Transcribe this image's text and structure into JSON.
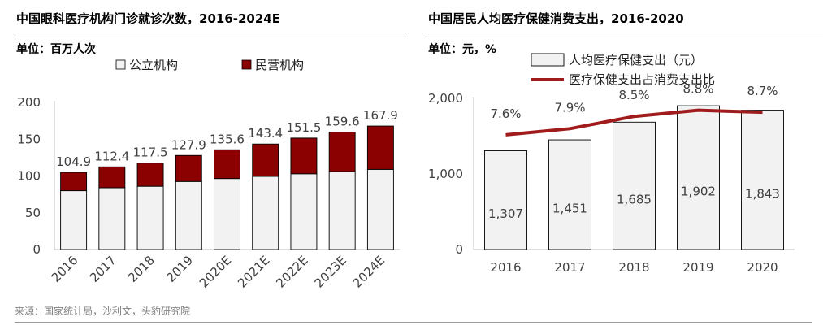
{
  "source_note": "来源：国家统计局，沙利文，头豹研究院",
  "chart_data": [
    {
      "type": "bar",
      "stacked": true,
      "title": "中国眼科医疗机构门诊就诊次数，2016-2024E",
      "unit_label": "单位：百万人次",
      "categories": [
        "2016",
        "2017",
        "2018",
        "2019",
        "2020E",
        "2021E",
        "2022E",
        "2023E",
        "2024E"
      ],
      "series": [
        {
          "name": "公立机构",
          "color": "#f2f2f2",
          "values": [
            80.0,
            84.0,
            86.0,
            92.5,
            96.5,
            99.5,
            103.0,
            106.0,
            109.0
          ]
        },
        {
          "name": "民营机构",
          "color": "#8b0000",
          "values": [
            24.9,
            28.4,
            31.5,
            35.4,
            39.1,
            43.9,
            48.5,
            53.6,
            58.9
          ]
        }
      ],
      "totals": [
        "104.9",
        "112.4",
        "117.5",
        "127.9",
        "135.6",
        "143.4",
        "151.5",
        "159.6",
        "167.9"
      ],
      "yticks": [
        "0",
        "50",
        "100",
        "150",
        "200"
      ],
      "ylim": [
        0,
        200
      ],
      "legend_position": "top",
      "grid": false
    },
    {
      "type": "bar+line",
      "title": "中国居民人均医疗保健消费支出，2016-2020",
      "unit_label": "单位：元，%",
      "categories": [
        "2016",
        "2017",
        "2018",
        "2019",
        "2020"
      ],
      "bar_series": {
        "name": "人均医疗保健支出（元）",
        "color": "#f2f2f2",
        "values": [
          1307,
          1451,
          1685,
          1902,
          1843
        ],
        "labels": [
          "1,307",
          "1,451",
          "1,685",
          "1,902",
          "1,843"
        ]
      },
      "line_series": {
        "name": "医疗保健支出占消费支出比",
        "color": "#a01c1c",
        "values": [
          7.6,
          7.9,
          8.5,
          8.8,
          8.7
        ],
        "labels": [
          "7.6%",
          "7.9%",
          "8.5%",
          "8.8%",
          "8.7%"
        ]
      },
      "yticks": [
        "0",
        "1,000",
        "2,000"
      ],
      "ylim": [
        0,
        2000
      ],
      "line_ylim": [
        2,
        9.5
      ],
      "legend_position": "top",
      "grid": false
    }
  ]
}
